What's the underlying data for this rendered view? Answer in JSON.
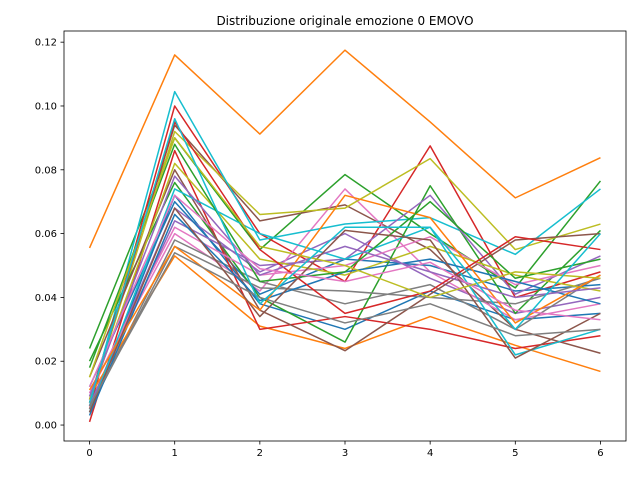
{
  "chart_data": {
    "type": "line",
    "title": "Distribuzione originale emozione 0 EMOVO",
    "xlabel": "",
    "ylabel": "",
    "x": [
      0,
      1,
      2,
      3,
      4,
      5,
      6
    ],
    "xlim": [
      -0.3,
      6.3
    ],
    "ylim": [
      -0.005,
      0.1235
    ],
    "x_ticks": [
      "0",
      "1",
      "2",
      "3",
      "4",
      "5",
      "6"
    ],
    "y_ticks": [
      "0.00",
      "0.02",
      "0.04",
      "0.06",
      "0.08",
      "0.10",
      "0.12"
    ],
    "grid": false,
    "palette": [
      "#1f77b4",
      "#ff7f0e",
      "#2ca02c",
      "#d62728",
      "#9467bd",
      "#8c564b",
      "#e377c2",
      "#7f7f7f",
      "#bcbd22",
      "#17becf"
    ],
    "series": [
      {
        "values": [
          0.004,
          0.072,
          0.038,
          0.03,
          0.042,
          0.033,
          0.035
        ]
      },
      {
        "values": [
          0.0555,
          0.116,
          0.0912,
          0.1175,
          0.095,
          0.0712,
          0.0838
        ]
      },
      {
        "values": [
          0.024,
          0.09,
          0.055,
          0.0785,
          0.06,
          0.043,
          0.0765
        ]
      },
      {
        "values": [
          0.005,
          0.1,
          0.06,
          0.045,
          0.0875,
          0.04,
          0.048
        ]
      },
      {
        "values": [
          0.006,
          0.068,
          0.048,
          0.06,
          0.046,
          0.035,
          0.04
        ]
      },
      {
        "values": [
          0.008,
          0.094,
          0.064,
          0.069,
          0.055,
          0.03,
          0.0225
        ]
      },
      {
        "values": [
          0.01,
          0.06,
          0.042,
          0.074,
          0.048,
          0.033,
          0.038
        ]
      },
      {
        "values": [
          0.005,
          0.058,
          0.045,
          0.038,
          0.044,
          0.03,
          0.047
        ]
      },
      {
        "values": [
          0.007,
          0.092,
          0.066,
          0.068,
          0.0835,
          0.055,
          0.063
        ]
      },
      {
        "values": [
          0.006,
          0.1045,
          0.058,
          0.063,
          0.065,
          0.0535,
          0.074
        ]
      },
      {
        "values": [
          0.012,
          0.07,
          0.041,
          0.052,
          0.05,
          0.042,
          0.044
        ]
      },
      {
        "values": [
          0.009,
          0.053,
          0.031,
          0.024,
          0.034,
          0.025,
          0.0168
        ]
      },
      {
        "values": [
          0.02,
          0.076,
          0.04,
          0.026,
          0.075,
          0.035,
          0.061
        ]
      },
      {
        "values": [
          0.001,
          0.086,
          0.03,
          0.034,
          0.03,
          0.024,
          0.028
        ]
      },
      {
        "values": [
          0.006,
          0.064,
          0.05,
          0.052,
          0.072,
          0.041,
          0.053
        ]
      },
      {
        "values": [
          0.015,
          0.08,
          0.036,
          0.0233,
          0.041,
          0.058,
          0.06
        ]
      },
      {
        "values": [
          0.01,
          0.062,
          0.047,
          0.05,
          0.059,
          0.044,
          0.05
        ]
      },
      {
        "values": [
          0.005,
          0.056,
          0.043,
          0.042,
          0.04,
          0.038,
          0.046
        ]
      },
      {
        "values": [
          0.008,
          0.082,
          0.052,
          0.047,
          0.056,
          0.047,
          0.042
        ]
      },
      {
        "values": [
          0.004,
          0.074,
          0.06,
          0.052,
          0.062,
          0.022,
          0.03
        ]
      },
      {
        "values": [
          0.003,
          0.066,
          0.039,
          0.048,
          0.052,
          0.045,
          0.038
        ]
      },
      {
        "values": [
          0.011,
          0.056,
          0.036,
          0.072,
          0.065,
          0.032,
          0.047
        ]
      },
      {
        "values": [
          0.018,
          0.088,
          0.045,
          0.048,
          0.07,
          0.046,
          0.052
        ]
      },
      {
        "values": [
          0.007,
          0.095,
          0.055,
          0.035,
          0.042,
          0.059,
          0.055
        ]
      },
      {
        "values": [
          0.009,
          0.078,
          0.047,
          0.056,
          0.048,
          0.04,
          0.043
        ]
      },
      {
        "values": [
          0.004,
          0.068,
          0.034,
          0.061,
          0.058,
          0.021,
          0.035
        ]
      },
      {
        "values": [
          0.012,
          0.072,
          0.049,
          0.045,
          0.051,
          0.036,
          0.033
        ]
      },
      {
        "values": [
          0.006,
          0.054,
          0.04,
          0.032,
          0.038,
          0.028,
          0.03
        ]
      },
      {
        "values": [
          0.015,
          0.09,
          0.056,
          0.05,
          0.04,
          0.048,
          0.046
        ]
      },
      {
        "values": [
          0.007,
          0.096,
          0.038,
          0.062,
          0.062,
          0.03,
          0.06
        ]
      }
    ]
  }
}
